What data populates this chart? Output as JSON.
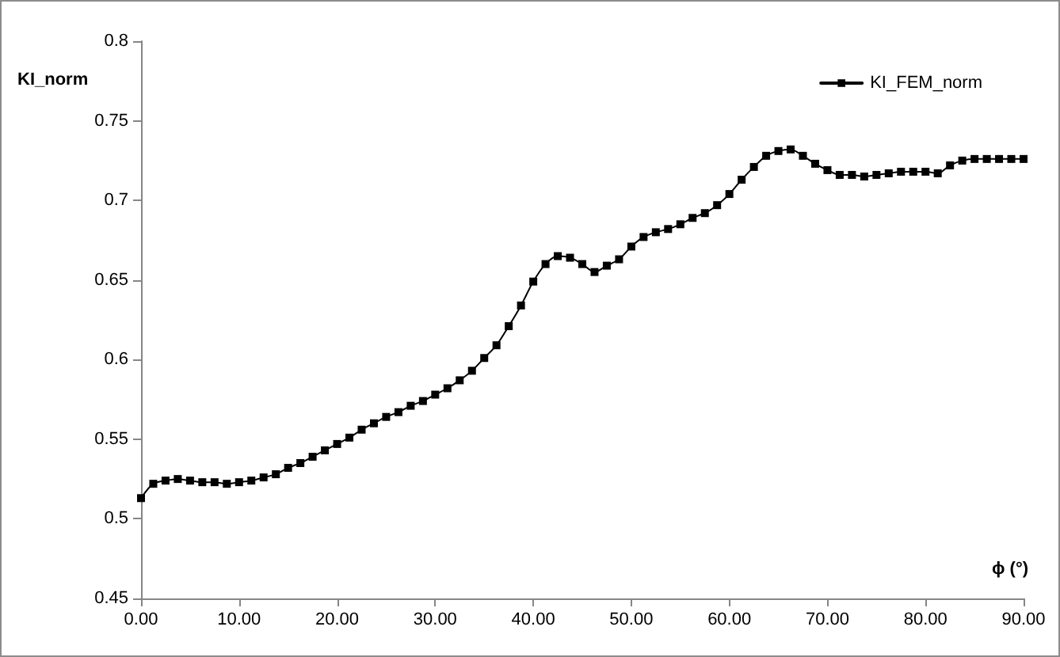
{
  "chart_data": {
    "type": "line",
    "xlabel": "ϕ (°)",
    "ylabel": "KI_norm",
    "x": [
      0,
      1.25,
      2.5,
      3.75,
      5,
      6.25,
      7.5,
      8.75,
      10,
      11.25,
      12.5,
      13.75,
      15,
      16.25,
      17.5,
      18.75,
      20,
      21.25,
      22.5,
      23.75,
      25,
      26.25,
      27.5,
      28.75,
      30,
      31.25,
      32.5,
      33.75,
      35,
      36.25,
      37.5,
      38.75,
      40,
      41.25,
      42.5,
      43.75,
      45,
      46.25,
      47.5,
      48.75,
      50,
      51.25,
      52.5,
      53.75,
      55,
      56.25,
      57.5,
      58.75,
      60,
      61.25,
      62.5,
      63.75,
      65,
      66.25,
      67.5,
      68.75,
      70,
      71.25,
      72.5,
      73.75,
      75,
      76.25,
      77.5,
      78.75,
      80,
      81.25,
      82.5,
      83.75,
      85,
      86.25,
      87.5,
      88.75,
      90
    ],
    "series": [
      {
        "name": "KI_FEM_norm",
        "color": "#000000",
        "values": [
          0.513,
          0.522,
          0.524,
          0.525,
          0.524,
          0.523,
          0.523,
          0.522,
          0.523,
          0.524,
          0.526,
          0.528,
          0.532,
          0.535,
          0.539,
          0.543,
          0.547,
          0.551,
          0.556,
          0.56,
          0.564,
          0.567,
          0.571,
          0.574,
          0.578,
          0.582,
          0.587,
          0.593,
          0.601,
          0.609,
          0.621,
          0.634,
          0.649,
          0.66,
          0.665,
          0.664,
          0.66,
          0.655,
          0.659,
          0.663,
          0.671,
          0.677,
          0.68,
          0.682,
          0.685,
          0.689,
          0.692,
          0.697,
          0.704,
          0.713,
          0.721,
          0.728,
          0.731,
          0.732,
          0.728,
          0.723,
          0.719,
          0.716,
          0.716,
          0.715,
          0.716,
          0.717,
          0.718,
          0.718,
          0.718,
          0.717,
          0.722,
          0.725,
          0.726,
          0.726,
          0.726,
          0.726,
          0.726
        ]
      }
    ],
    "xlim": [
      0,
      90
    ],
    "xticks": [
      {
        "value": 0,
        "label": "0.00"
      },
      {
        "value": 10,
        "label": "10.00"
      },
      {
        "value": 20,
        "label": "20.00"
      },
      {
        "value": 30,
        "label": "30.00"
      },
      {
        "value": 40,
        "label": "40.00"
      },
      {
        "value": 50,
        "label": "50.00"
      },
      {
        "value": 60,
        "label": "60.00"
      },
      {
        "value": 70,
        "label": "70.00"
      },
      {
        "value": 80,
        "label": "80.00"
      },
      {
        "value": 90,
        "label": "90.00"
      }
    ],
    "ylim": [
      0.45,
      0.8
    ],
    "yticks": [
      0.45,
      0.5,
      0.55,
      0.6,
      0.65,
      0.7,
      0.75,
      0.8
    ],
    "legend": "top right",
    "marker": "square",
    "line_style": "solid"
  }
}
